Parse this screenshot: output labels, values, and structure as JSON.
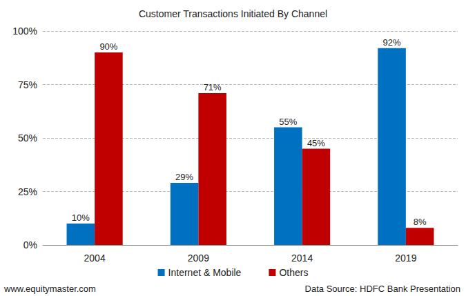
{
  "chart_data": {
    "type": "bar",
    "title": "Customer Transactions Initiated By Channel",
    "categories": [
      "2004",
      "2009",
      "2014",
      "2019"
    ],
    "series": [
      {
        "name": "Internet & Mobile",
        "color": "#0070c0",
        "values": [
          10,
          29,
          55,
          92
        ],
        "value_labels": [
          "10%",
          "29%",
          "55%",
          "92%"
        ]
      },
      {
        "name": "Others",
        "color": "#c00000",
        "values": [
          90,
          71,
          45,
          8
        ],
        "value_labels": [
          "90%",
          "71%",
          "45%",
          "8%"
        ]
      }
    ],
    "ylim": [
      0,
      100
    ],
    "yticks": [
      {
        "value": 0,
        "label": "0%"
      },
      {
        "value": 25,
        "label": "25%"
      },
      {
        "value": 50,
        "label": "50%"
      },
      {
        "value": 75,
        "label": "75%"
      },
      {
        "value": 100,
        "label": "100%"
      }
    ],
    "grid": true,
    "legend": "bottom",
    "data_labels": true,
    "annotations": [
      "www.equitymaster.com",
      "Data Source: HDFC Bank Presentation"
    ]
  }
}
